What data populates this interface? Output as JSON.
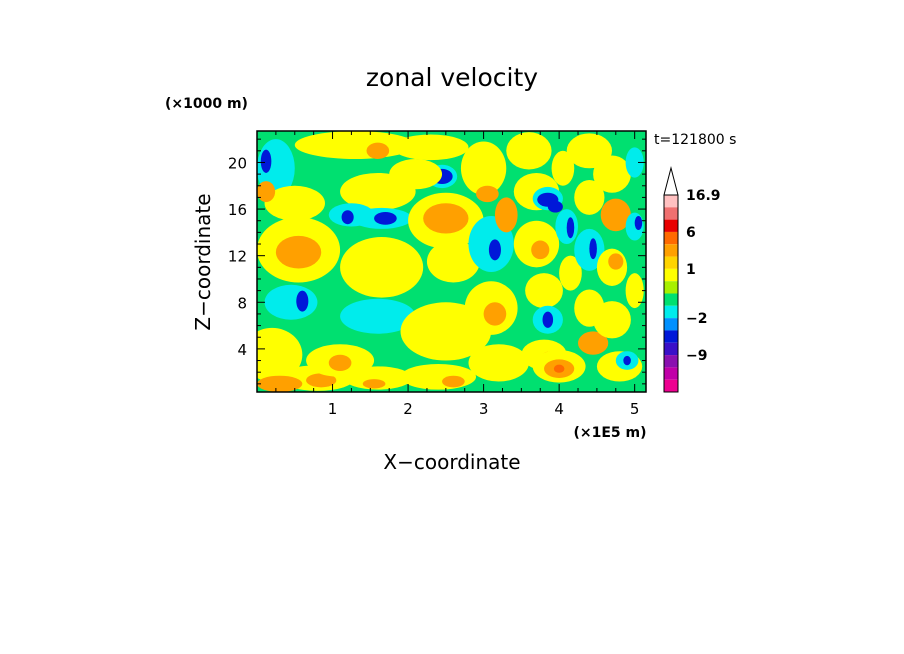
{
  "chart_data": {
    "type": "heatmap",
    "title": "zonal velocity",
    "xlabel": "X−coordinate",
    "ylabel": "Z−coordinate",
    "x_units": "(×1E5 m)",
    "y_units": "(×1000 m)",
    "time_label": "t=121800 s",
    "xlim": [
      0,
      5.15
    ],
    "ylim": [
      0.3,
      22.7
    ],
    "x_ticks": [
      1,
      2,
      3,
      4,
      5
    ],
    "y_ticks": [
      4,
      8,
      12,
      16,
      20
    ],
    "x_tick_labels": [
      "1",
      "2",
      "3",
      "4",
      "5"
    ],
    "y_tick_labels": [
      "4",
      "8",
      "12",
      "16",
      "20"
    ],
    "colorbar": {
      "levels": [
        -9,
        -2,
        1,
        6,
        16.9
      ],
      "labels": [
        "16.9",
        "6",
        "1",
        "−2",
        "−9"
      ],
      "bands": [
        {
          "color": "#ee0090",
          "lo": -20,
          "hi": -16
        },
        {
          "color": "#c000a8",
          "lo": -16,
          "hi": -12
        },
        {
          "color": "#8a10b0",
          "lo": -12,
          "hi": -9
        },
        {
          "color": "#3a10c8",
          "lo": -9,
          "hi": -6
        },
        {
          "color": "#0018d8",
          "lo": -6,
          "hi": -3
        },
        {
          "color": "#0090ff",
          "lo": -3,
          "hi": -2
        },
        {
          "color": "#00ecec",
          "lo": -2,
          "hi": -1
        },
        {
          "color": "#00e070",
          "lo": -1,
          "hi": 0
        },
        {
          "color": "#a8f000",
          "lo": 0,
          "hi": 0.5
        },
        {
          "color": "#ffff00",
          "lo": 0.5,
          "hi": 1
        },
        {
          "color": "#ffd400",
          "lo": 1,
          "hi": 2
        },
        {
          "color": "#ffa000",
          "lo": 2,
          "hi": 4
        },
        {
          "color": "#ff6a00",
          "lo": 4,
          "hi": 6
        },
        {
          "color": "#e80000",
          "lo": 6,
          "hi": 9
        },
        {
          "color": "#f07070",
          "lo": 9,
          "hi": 13
        },
        {
          "color": "#ffc0c0",
          "lo": 13,
          "hi": 16.9
        }
      ]
    },
    "field": {
      "background": "#00e070",
      "regions": [
        {
          "x": 0.25,
          "z": 19.5,
          "rx": 0.25,
          "rz": 2.5,
          "color": "#00ecec"
        },
        {
          "x": 0.12,
          "z": 20.1,
          "rx": 0.07,
          "rz": 1.0,
          "color": "#0018d8"
        },
        {
          "x": 0.5,
          "z": 16.5,
          "rx": 0.4,
          "rz": 1.5,
          "color": "#ffff00"
        },
        {
          "x": 0.12,
          "z": 17.5,
          "rx": 0.12,
          "rz": 0.9,
          "color": "#ffa000"
        },
        {
          "x": 0.55,
          "z": 12.5,
          "rx": 0.55,
          "rz": 2.8,
          "color": "#ffff00"
        },
        {
          "x": 0.55,
          "z": 12.3,
          "rx": 0.3,
          "rz": 1.4,
          "color": "#ffa000"
        },
        {
          "x": 0.45,
          "z": 8.0,
          "rx": 0.35,
          "rz": 1.5,
          "color": "#00ecec"
        },
        {
          "x": 0.6,
          "z": 8.1,
          "rx": 0.08,
          "rz": 0.9,
          "color": "#0018d8"
        },
        {
          "x": 0.2,
          "z": 3.5,
          "rx": 0.4,
          "rz": 2.3,
          "color": "#ffff00"
        },
        {
          "x": 0.8,
          "z": 1.5,
          "rx": 0.5,
          "rz": 1.1,
          "color": "#ffff00"
        },
        {
          "x": 0.85,
          "z": 1.3,
          "rx": 0.2,
          "rz": 0.6,
          "color": "#ffa000"
        },
        {
          "x": 0.85,
          "z": 3.0,
          "rx": 0.05,
          "rz": 0.6,
          "color": "#0018d8"
        },
        {
          "x": 1.3,
          "z": 21.5,
          "rx": 0.8,
          "rz": 1.2,
          "color": "#ffff00"
        },
        {
          "x": 1.6,
          "z": 17.5,
          "rx": 0.5,
          "rz": 1.6,
          "color": "#ffff00"
        },
        {
          "x": 1.65,
          "z": 15.2,
          "rx": 0.4,
          "rz": 0.9,
          "color": "#00ecec"
        },
        {
          "x": 1.7,
          "z": 15.2,
          "rx": 0.15,
          "rz": 0.55,
          "color": "#0018d8"
        },
        {
          "x": 1.25,
          "z": 15.5,
          "rx": 0.3,
          "rz": 1.0,
          "color": "#00ecec"
        },
        {
          "x": 1.2,
          "z": 15.3,
          "rx": 0.08,
          "rz": 0.6,
          "color": "#0018d8"
        },
        {
          "x": 1.65,
          "z": 11.0,
          "rx": 0.55,
          "rz": 2.6,
          "color": "#ffff00"
        },
        {
          "x": 1.6,
          "z": 6.8,
          "rx": 0.5,
          "rz": 1.5,
          "color": "#00ecec"
        },
        {
          "x": 1.1,
          "z": 3.0,
          "rx": 0.45,
          "rz": 1.4,
          "color": "#ffff00"
        },
        {
          "x": 1.1,
          "z": 2.8,
          "rx": 0.15,
          "rz": 0.7,
          "color": "#ffa000"
        },
        {
          "x": 1.6,
          "z": 1.5,
          "rx": 0.45,
          "rz": 1.0,
          "color": "#ffff00"
        },
        {
          "x": 1.55,
          "z": 1.0,
          "rx": 0.15,
          "rz": 0.4,
          "color": "#ffa000"
        },
        {
          "x": 1.6,
          "z": 21.0,
          "rx": 0.15,
          "rz": 0.7,
          "color": "#ffa000"
        },
        {
          "x": 2.5,
          "z": 15.0,
          "rx": 0.5,
          "rz": 2.4,
          "color": "#ffff00"
        },
        {
          "x": 2.5,
          "z": 15.2,
          "rx": 0.3,
          "rz": 1.3,
          "color": "#ffa000"
        },
        {
          "x": 2.45,
          "z": 18.8,
          "rx": 0.2,
          "rz": 1.0,
          "color": "#00ecec"
        },
        {
          "x": 2.45,
          "z": 18.8,
          "rx": 0.14,
          "rz": 0.65,
          "color": "#0018d8"
        },
        {
          "x": 2.1,
          "z": 19.0,
          "rx": 0.35,
          "rz": 1.3,
          "color": "#ffff00"
        },
        {
          "x": 2.3,
          "z": 21.3,
          "rx": 0.5,
          "rz": 1.1,
          "color": "#ffff00"
        },
        {
          "x": 2.6,
          "z": 11.5,
          "rx": 0.35,
          "rz": 1.8,
          "color": "#ffff00"
        },
        {
          "x": 2.5,
          "z": 5.5,
          "rx": 0.6,
          "rz": 2.5,
          "color": "#ffff00"
        },
        {
          "x": 2.4,
          "z": 1.6,
          "rx": 0.5,
          "rz": 1.1,
          "color": "#ffff00"
        },
        {
          "x": 2.6,
          "z": 1.2,
          "rx": 0.15,
          "rz": 0.5,
          "color": "#ffa000"
        },
        {
          "x": 3.0,
          "z": 19.5,
          "rx": 0.3,
          "rz": 2.3,
          "color": "#ffff00"
        },
        {
          "x": 3.05,
          "z": 17.3,
          "rx": 0.15,
          "rz": 0.7,
          "color": "#ffa000"
        },
        {
          "x": 3.1,
          "z": 13.0,
          "rx": 0.3,
          "rz": 2.4,
          "color": "#00ecec"
        },
        {
          "x": 3.15,
          "z": 12.5,
          "rx": 0.08,
          "rz": 0.9,
          "color": "#0018d8"
        },
        {
          "x": 3.1,
          "z": 7.5,
          "rx": 0.35,
          "rz": 2.3,
          "color": "#ffff00"
        },
        {
          "x": 3.15,
          "z": 7.0,
          "rx": 0.15,
          "rz": 1.0,
          "color": "#ffa000"
        },
        {
          "x": 3.2,
          "z": 2.8,
          "rx": 0.4,
          "rz": 1.6,
          "color": "#ffff00"
        },
        {
          "x": 3.3,
          "z": 15.5,
          "rx": 0.15,
          "rz": 1.5,
          "color": "#ffa000"
        },
        {
          "x": 3.6,
          "z": 21.0,
          "rx": 0.3,
          "rz": 1.6,
          "color": "#ffff00"
        },
        {
          "x": 3.7,
          "z": 17.5,
          "rx": 0.3,
          "rz": 1.6,
          "color": "#ffff00"
        },
        {
          "x": 3.85,
          "z": 16.9,
          "rx": 0.2,
          "rz": 1.0,
          "color": "#00ecec"
        },
        {
          "x": 3.85,
          "z": 16.8,
          "rx": 0.14,
          "rz": 0.6,
          "color": "#0018d8"
        },
        {
          "x": 3.95,
          "z": 16.2,
          "rx": 0.1,
          "rz": 0.5,
          "color": "#0018d8"
        },
        {
          "x": 3.7,
          "z": 13.0,
          "rx": 0.3,
          "rz": 2.0,
          "color": "#ffff00"
        },
        {
          "x": 3.75,
          "z": 12.5,
          "rx": 0.12,
          "rz": 0.8,
          "color": "#ffa000"
        },
        {
          "x": 3.8,
          "z": 9.0,
          "rx": 0.25,
          "rz": 1.5,
          "color": "#ffff00"
        },
        {
          "x": 3.85,
          "z": 6.5,
          "rx": 0.2,
          "rz": 1.2,
          "color": "#00ecec"
        },
        {
          "x": 3.85,
          "z": 6.5,
          "rx": 0.07,
          "rz": 0.7,
          "color": "#0018d8"
        },
        {
          "x": 3.8,
          "z": 3.5,
          "rx": 0.3,
          "rz": 1.3,
          "color": "#ffff00"
        },
        {
          "x": 3.9,
          "z": 3.2,
          "rx": 0.15,
          "rz": 0.6,
          "color": "#ffa000"
        },
        {
          "x": 4.0,
          "z": 2.5,
          "rx": 0.35,
          "rz": 1.4,
          "color": "#ffff00"
        },
        {
          "x": 4.0,
          "z": 2.3,
          "rx": 0.2,
          "rz": 0.8,
          "color": "#ffa000"
        },
        {
          "x": 4.0,
          "z": 2.3,
          "rx": 0.07,
          "rz": 0.35,
          "color": "#ff6a00"
        },
        {
          "x": 4.05,
          "z": 19.5,
          "rx": 0.15,
          "rz": 1.5,
          "color": "#ffff00"
        },
        {
          "x": 4.1,
          "z": 14.5,
          "rx": 0.15,
          "rz": 1.5,
          "color": "#00ecec"
        },
        {
          "x": 4.15,
          "z": 14.4,
          "rx": 0.05,
          "rz": 0.9,
          "color": "#0018d8"
        },
        {
          "x": 4.15,
          "z": 10.5,
          "rx": 0.15,
          "rz": 1.5,
          "color": "#ffff00"
        },
        {
          "x": 4.4,
          "z": 21.0,
          "rx": 0.3,
          "rz": 1.5,
          "color": "#ffff00"
        },
        {
          "x": 4.4,
          "z": 17.0,
          "rx": 0.2,
          "rz": 1.5,
          "color": "#ffff00"
        },
        {
          "x": 4.4,
          "z": 12.5,
          "rx": 0.2,
          "rz": 1.8,
          "color": "#00ecec"
        },
        {
          "x": 4.45,
          "z": 12.6,
          "rx": 0.05,
          "rz": 0.9,
          "color": "#0018d8"
        },
        {
          "x": 4.4,
          "z": 7.5,
          "rx": 0.2,
          "rz": 1.6,
          "color": "#ffff00"
        },
        {
          "x": 4.45,
          "z": 4.5,
          "rx": 0.2,
          "rz": 1.0,
          "color": "#ffa000"
        },
        {
          "x": 4.7,
          "z": 19.0,
          "rx": 0.25,
          "rz": 1.6,
          "color": "#ffff00"
        },
        {
          "x": 4.75,
          "z": 15.5,
          "rx": 0.2,
          "rz": 1.4,
          "color": "#ffa000"
        },
        {
          "x": 4.7,
          "z": 11.0,
          "rx": 0.2,
          "rz": 1.6,
          "color": "#ffff00"
        },
        {
          "x": 4.75,
          "z": 11.5,
          "rx": 0.1,
          "rz": 0.7,
          "color": "#ffa000"
        },
        {
          "x": 4.7,
          "z": 6.5,
          "rx": 0.25,
          "rz": 1.6,
          "color": "#ffff00"
        },
        {
          "x": 4.8,
          "z": 2.5,
          "rx": 0.3,
          "rz": 1.3,
          "color": "#ffff00"
        },
        {
          "x": 5.0,
          "z": 14.5,
          "rx": 0.12,
          "rz": 1.2,
          "color": "#00ecec"
        },
        {
          "x": 5.05,
          "z": 14.8,
          "rx": 0.05,
          "rz": 0.6,
          "color": "#0018d8"
        },
        {
          "x": 5.0,
          "z": 9.0,
          "rx": 0.12,
          "rz": 1.5,
          "color": "#ffff00"
        },
        {
          "x": 5.0,
          "z": 20.0,
          "rx": 0.12,
          "rz": 1.3,
          "color": "#00ecec"
        },
        {
          "x": 4.9,
          "z": 3.0,
          "rx": 0.15,
          "rz": 0.8,
          "color": "#00ecec"
        },
        {
          "x": 4.9,
          "z": 3.0,
          "rx": 0.05,
          "rz": 0.4,
          "color": "#0018d8"
        },
        {
          "x": 0.3,
          "z": 1.0,
          "rx": 0.3,
          "rz": 0.7,
          "color": "#ffa000"
        }
      ]
    }
  }
}
